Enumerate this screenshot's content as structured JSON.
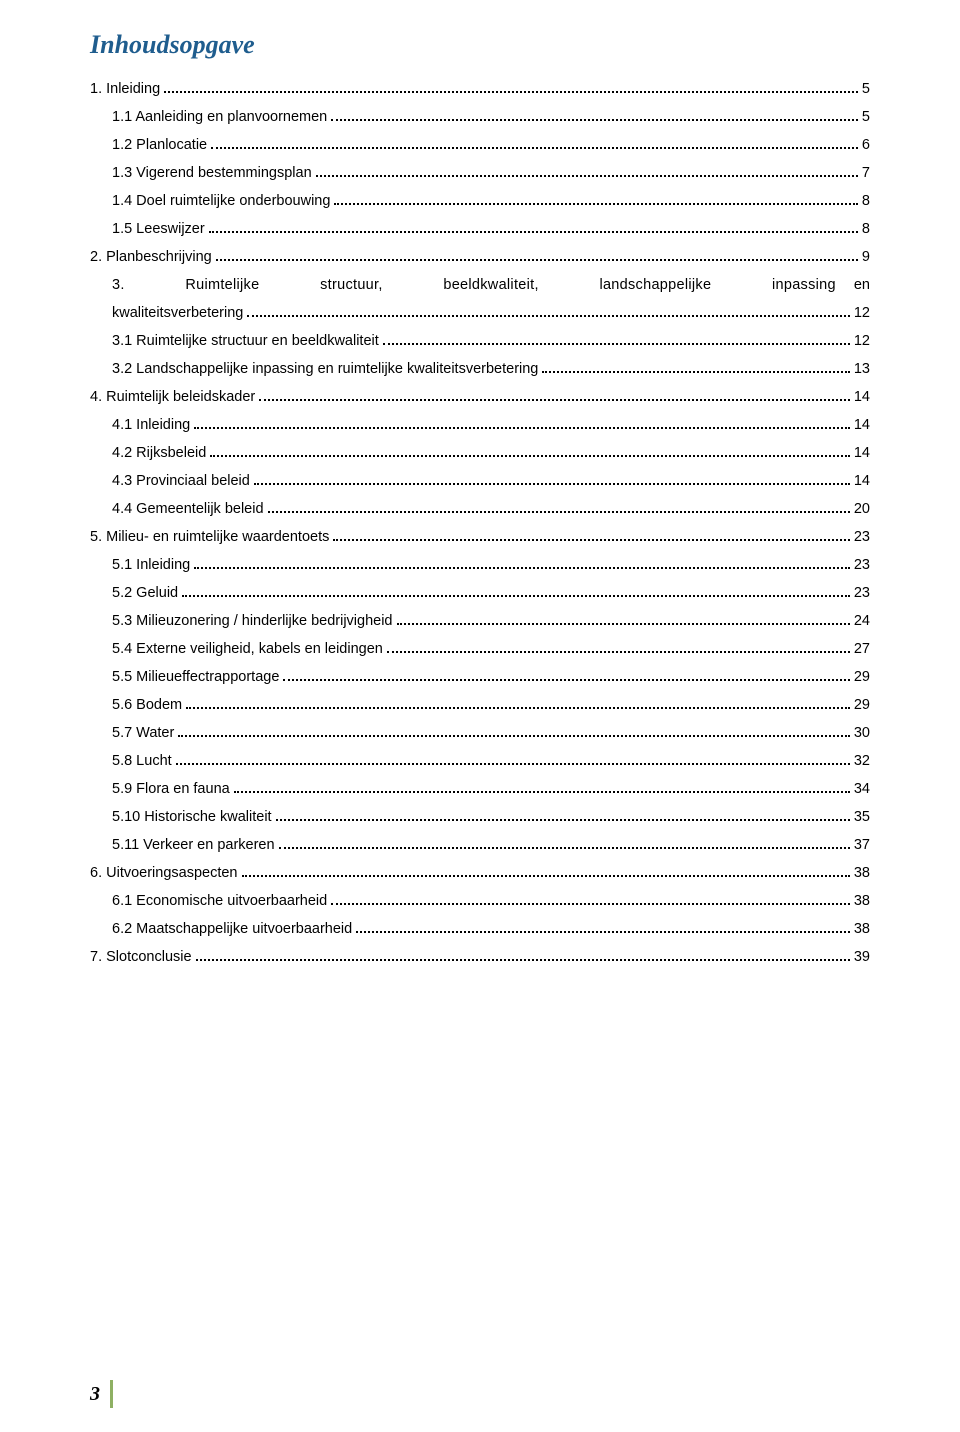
{
  "colors": {
    "heading": "#1f5d8e",
    "text": "#000000",
    "footer_bar": "#8eb063",
    "background": "#ffffff"
  },
  "typography": {
    "heading_family": "Georgia serif italic bold",
    "heading_size_pt": 20,
    "body_family": "Verdana sans-serif",
    "body_size_pt": 11
  },
  "title": "Inhoudsopgave",
  "toc": [
    {
      "level": 0,
      "label": "1. Inleiding",
      "page": "5"
    },
    {
      "level": 1,
      "label": "1.1 Aanleiding en planvoornemen",
      "page": "5"
    },
    {
      "level": 1,
      "label": "1.2 Planlocatie",
      "page": "6"
    },
    {
      "level": 1,
      "label": "1.3 Vigerend bestemmingsplan",
      "page": "7"
    },
    {
      "level": 1,
      "label": "1.4 Doel ruimtelijke onderbouwing",
      "page": "8"
    },
    {
      "level": 1,
      "label": "1.5 Leeswijzer",
      "page": "8"
    },
    {
      "level": 0,
      "label": "2. Planbeschrijving",
      "page": "9"
    },
    {
      "level": 1,
      "multi": true,
      "line1_justified": "3. Ruimtelijke structuur, beeldkwaliteit, landschappelijke inpassing",
      "line1_suffix": "en",
      "line2_label": "kwaliteitsverbetering",
      "page": "12"
    },
    {
      "level": 1,
      "label": "3.1 Ruimtelijke structuur en beeldkwaliteit",
      "page": "12"
    },
    {
      "level": 1,
      "label": "3.2 Landschappelijke inpassing en ruimtelijke kwaliteitsverbetering",
      "page": "13"
    },
    {
      "level": 0,
      "label": "4. Ruimtelijk beleidskader",
      "page": "14"
    },
    {
      "level": 1,
      "label": "4.1 Inleiding",
      "page": "14"
    },
    {
      "level": 1,
      "label": "4.2 Rijksbeleid",
      "page": "14"
    },
    {
      "level": 1,
      "label": "4.3 Provinciaal beleid",
      "page": "14"
    },
    {
      "level": 1,
      "label": "4.4 Gemeentelijk beleid",
      "page": "20"
    },
    {
      "level": 0,
      "label": "5. Milieu- en ruimtelijke waardentoets",
      "page": "23"
    },
    {
      "level": 1,
      "label": "5.1 Inleiding",
      "page": "23"
    },
    {
      "level": 1,
      "label": "5.2 Geluid",
      "page": "23"
    },
    {
      "level": 1,
      "label": "5.3 Milieuzonering / hinderlijke bedrijvigheid",
      "page": "24"
    },
    {
      "level": 1,
      "label": "5.4 Externe veiligheid, kabels en leidingen",
      "page": "27"
    },
    {
      "level": 1,
      "label": "5.5 Milieueffectrapportage",
      "page": "29"
    },
    {
      "level": 1,
      "label": "5.6 Bodem",
      "page": "29"
    },
    {
      "level": 1,
      "label": "5.7 Water",
      "page": "30"
    },
    {
      "level": 1,
      "label": "5.8 Lucht",
      "page": "32"
    },
    {
      "level": 1,
      "label": "5.9 Flora en fauna",
      "page": "34"
    },
    {
      "level": 1,
      "label": "5.10 Historische kwaliteit",
      "page": "35"
    },
    {
      "level": 1,
      "label": "5.11 Verkeer en parkeren",
      "page": "37"
    },
    {
      "level": 0,
      "label": "6. Uitvoeringsaspecten",
      "page": "38"
    },
    {
      "level": 1,
      "label": "6.1 Economische uitvoerbaarheid",
      "page": "38"
    },
    {
      "level": 1,
      "label": "6.2 Maatschappelijke uitvoerbaarheid",
      "page": "38"
    },
    {
      "level": 0,
      "label": "7. Slotconclusie",
      "page": "39"
    }
  ],
  "footer": {
    "page_number": "3"
  }
}
